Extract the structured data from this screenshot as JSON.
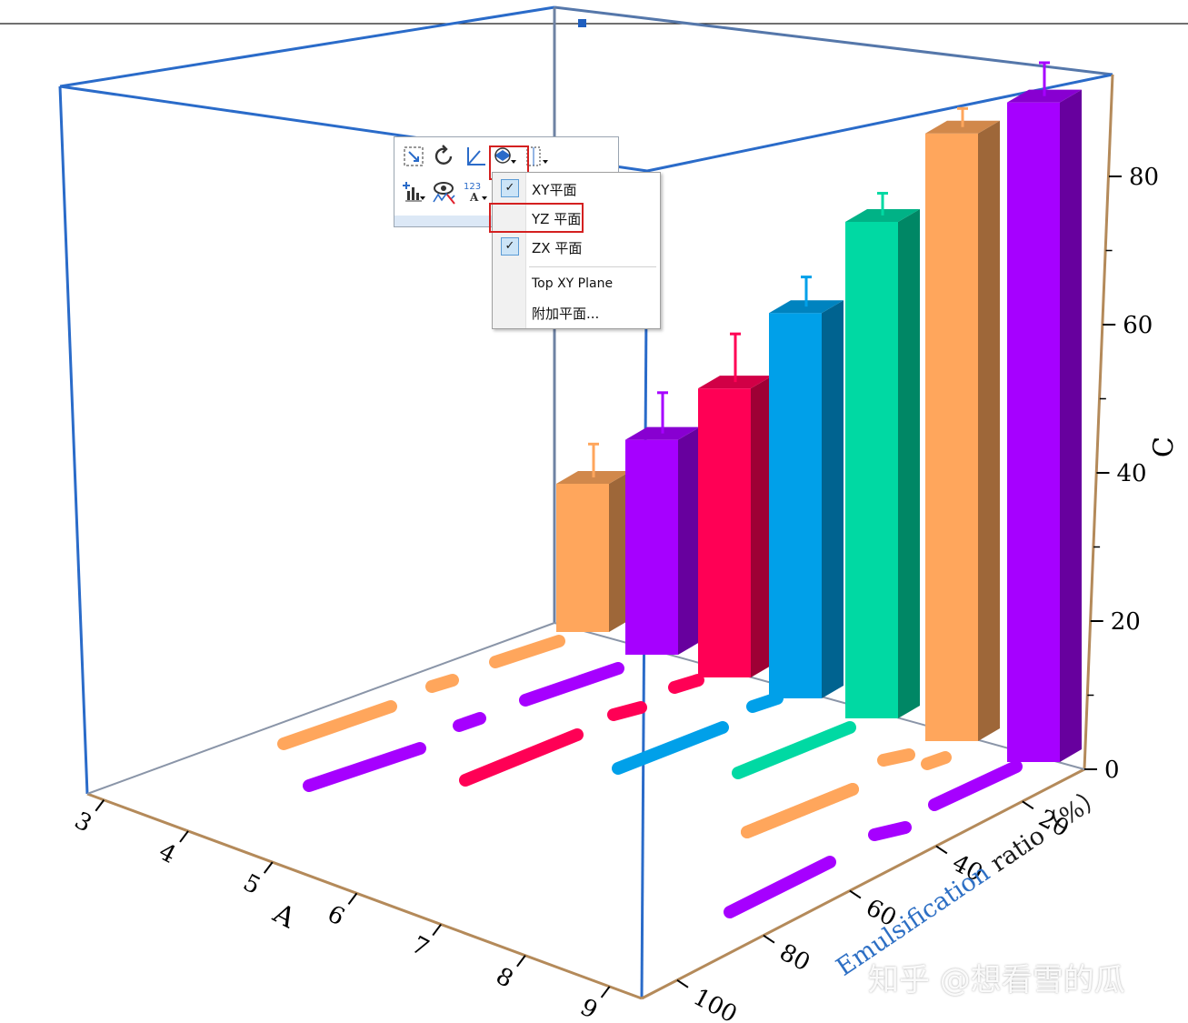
{
  "chart_data": {
    "type": "bar",
    "projection": "3d",
    "title": "",
    "xlabel": "A",
    "ylabel_segments": [
      {
        "text": "Emulsification",
        "color": "#2d6fc4"
      },
      {
        "text": " ratio（%）",
        "color": "#2d6fc4"
      }
    ],
    "zlabel": "C",
    "x_ticks": [
      "3",
      "4",
      "5",
      "6",
      "7",
      "8",
      "9"
    ],
    "y_ticks": [
      "20",
      "40",
      "60",
      "80",
      "100"
    ],
    "z_ticks": [
      "0",
      "20",
      "40",
      "60",
      "80"
    ],
    "zlim": [
      0,
      92
    ],
    "bars": [
      {
        "value": 20,
        "error": 4.5,
        "color": "#ffa65c"
      },
      {
        "value": 29,
        "error": 5.5,
        "color": "#a600ff"
      },
      {
        "value": 39,
        "error": 6.5,
        "color": "#ff0055"
      },
      {
        "value": 52,
        "error": 4.0,
        "color": "#00a0e9"
      },
      {
        "value": 67,
        "error": 3.0,
        "color": "#00d9a3"
      },
      {
        "value": 82,
        "error": 2.5,
        "color": "#ffa65c"
      },
      {
        "value": 89,
        "error": 4.5,
        "color": "#a600ff"
      }
    ],
    "grid": false,
    "legend": "none"
  },
  "toolbar": {
    "icons": [
      "rescale-icon",
      "rotate-icon",
      "axis-icon",
      "plane-icon",
      "layer-icon",
      "add-plot-icon",
      "show-icon",
      "label-icon"
    ]
  },
  "plane_menu": {
    "items": [
      {
        "label": "XY平面",
        "checked": true
      },
      {
        "label": "YZ 平面",
        "checked": false
      },
      {
        "label": "ZX 平面",
        "checked": true
      },
      {
        "label": "Top XY Plane",
        "checked": false
      },
      {
        "label": "附加平面...",
        "checked": false
      }
    ]
  },
  "watermark": "知乎 @想看雪的瓜"
}
